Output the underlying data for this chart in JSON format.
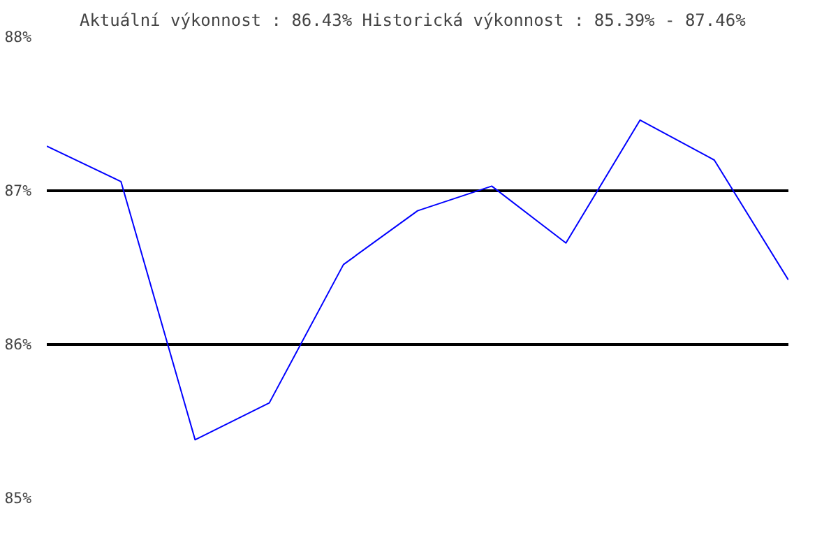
{
  "chart_data": {
    "type": "line",
    "title": "Aktuální výkonnost : 86.43%  Historická výkonnost : 85.39% - 87.46%",
    "categories": [
      null,
      null,
      null,
      null,
      null,
      null,
      null,
      null,
      null,
      null,
      null
    ],
    "series": [
      {
        "color": "#0000ff",
        "values": [
          87.29,
          87.06,
          85.38,
          85.62,
          86.52,
          86.87,
          87.03,
          86.66,
          87.46,
          87.2,
          86.42
        ]
      }
    ],
    "ylim": [
      85,
      88
    ],
    "yticks": [
      {
        "value": 85,
        "label": "85%"
      },
      {
        "value": 86,
        "label": "86%"
      },
      {
        "value": 87,
        "label": "87%"
      },
      {
        "value": 88,
        "label": "88%"
      }
    ],
    "grid": "y",
    "marker": "none",
    "line_style": "solid",
    "tick_labels": "y"
  }
}
